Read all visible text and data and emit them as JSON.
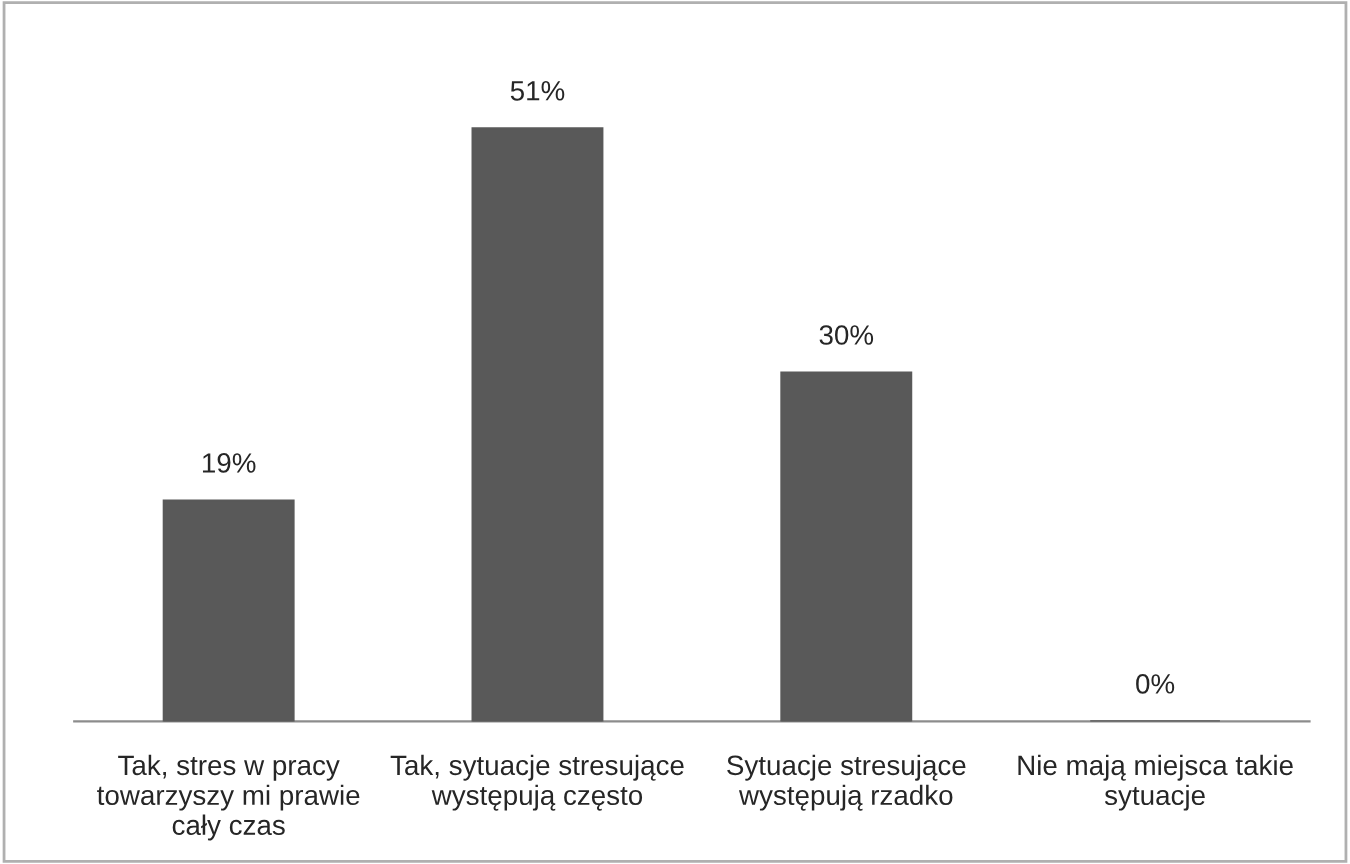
{
  "chart_data": {
    "type": "bar",
    "categories": [
      "Tak, stres w pracy\ntowarzyszy mi prawie\ncały czas",
      "Tak, sytuacje stresujące\nwystępują często",
      "Sytuacje stresujące\nwystępują rzadko",
      "Nie mają miejsca takie\nsytuacje"
    ],
    "values": [
      19,
      51,
      30,
      0
    ],
    "value_labels": [
      "19%",
      "51%",
      "30%",
      "0%"
    ],
    "color": "#595959"
  }
}
